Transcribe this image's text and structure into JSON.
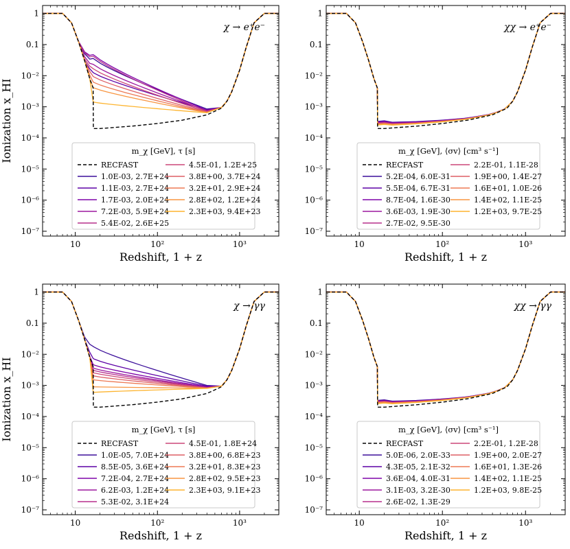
{
  "figure": {
    "ylabel": "Ionization x_HI",
    "xlabel": "Redshift, 1 + z"
  },
  "colors": {
    "recfast": "#000000",
    "palette": [
      "#3b0f9a",
      "#5c01a6",
      "#7e03a8",
      "#9c179e",
      "#b52f8c",
      "#cc4778",
      "#de5f65",
      "#ed7953",
      "#f89540",
      "#fdb42f"
    ]
  },
  "chart_data": [
    {
      "type": "line",
      "panel": "top-left",
      "title": "χ → e⁺e⁻",
      "xlabel": "Redshift, 1 + z",
      "ylabel": "Ionization x_HI",
      "xscale": "log",
      "yscale": "log",
      "xlim": [
        4,
        3000
      ],
      "ylim": [
        7e-08,
        1.8
      ],
      "xticks": [
        "10",
        "10²",
        "10³"
      ],
      "yticks": [
        "1",
        "0.1",
        "10⁻²",
        "10⁻³",
        "10⁻⁴",
        "10⁻⁵",
        "10⁻⁶",
        "10⁻⁷"
      ],
      "legend": {
        "placement": "lower-center",
        "title": "m_χ [GeV],  τ [s]",
        "recfast_label": "RECFAST",
        "entries": [
          "1.0E-03, 2.7E+24",
          "1.1E-03, 2.7E+24",
          "1.7E-03, 2.0E+24",
          "7.2E-03, 5.9E+24",
          "5.4E-02, 2.6E+25",
          "4.5E-01, 1.2E+25",
          "3.8E+00, 3.7E+24",
          "3.2E+01, 2.9E+24",
          "2.8E+02, 1.2E+24",
          "2.3E+03, 9.4E+23"
        ]
      },
      "baseline": {
        "name": "RECFAST",
        "x": [
          4,
          7,
          9,
          11,
          13,
          15,
          16.5,
          16.6,
          20,
          50,
          100,
          200,
          400,
          600,
          700,
          800,
          1000,
          1200,
          1500,
          2000,
          3000
        ],
        "y": [
          1,
          1,
          0.5,
          0.12,
          0.03,
          0.008,
          0.004,
          0.0002,
          0.0002,
          0.00024,
          0.00029,
          0.00037,
          0.00055,
          0.0009,
          0.0015,
          0.003,
          0.015,
          0.08,
          0.5,
          1,
          1
        ]
      },
      "series": [
        {
          "name": "1.0E-03, 2.7E+24",
          "y17": 0.034,
          "y400": 0.00085
        },
        {
          "name": "1.1E-03, 2.7E+24",
          "y17": 0.012,
          "y400": 0.0008
        },
        {
          "name": "1.7E-03, 2.0E+24",
          "y17": 0.045,
          "y400": 0.00078
        },
        {
          "name": "7.2E-03, 5.9E+24",
          "y17": 0.022,
          "y400": 0.00075
        },
        {
          "name": "5.4E-02, 2.6E+25",
          "y17": 0.04,
          "y400": 0.00072
        },
        {
          "name": "4.5E-01, 1.2E+25",
          "y17": 0.016,
          "y400": 0.0007
        },
        {
          "name": "3.8E+00, 3.7E+24",
          "y17": 0.009,
          "y400": 0.00068
        },
        {
          "name": "3.2E+01, 2.9E+24",
          "y17": 0.006,
          "y400": 0.00066
        },
        {
          "name": "2.8E+02, 1.2E+24",
          "y17": 0.004,
          "y400": 0.00065
        },
        {
          "name": "2.3E+03, 9.4E+23",
          "y17": 0.0014,
          "y400": 0.00064
        }
      ]
    },
    {
      "type": "line",
      "panel": "top-right",
      "title": "χχ → e⁺e⁻",
      "xlabel": "Redshift, 1 + z",
      "ylabel": "",
      "xscale": "log",
      "yscale": "log",
      "xlim": [
        4,
        3000
      ],
      "ylim": [
        7e-08,
        1.8
      ],
      "xticks": [
        "10",
        "10²",
        "10³"
      ],
      "yticks": [
        "1",
        "0.1",
        "10⁻²",
        "10⁻³",
        "10⁻⁴",
        "10⁻⁵",
        "10⁻⁶",
        "10⁻⁷"
      ],
      "legend": {
        "placement": "lower-center",
        "title": "m_χ [GeV],  ⟨σv⟩ [cm³ s⁻¹]",
        "recfast_label": "RECFAST",
        "entries": [
          "5.2E-04, 6.0E-31",
          "5.5E-04, 6.7E-31",
          "8.7E-04, 1.6E-30",
          "3.6E-03, 1.9E-30",
          "2.7E-02, 9.5E-30",
          "2.2E-01, 1.1E-28",
          "1.9E+00, 1.4E-27",
          "1.6E+01, 1.0E-26",
          "1.4E+02, 1.1E-25",
          "1.2E+03, 9.7E-25"
        ]
      },
      "baseline": {
        "name": "RECFAST",
        "x": [
          4,
          7,
          9,
          11,
          13,
          15,
          16.5,
          16.6,
          20,
          50,
          100,
          200,
          400,
          600,
          700,
          800,
          1000,
          1200,
          1500,
          2000,
          3000
        ],
        "y": [
          1,
          1,
          0.5,
          0.12,
          0.03,
          0.008,
          0.004,
          0.0002,
          0.0002,
          0.00024,
          0.00029,
          0.00037,
          0.00055,
          0.0009,
          0.0015,
          0.003,
          0.015,
          0.08,
          0.5,
          1,
          1
        ]
      },
      "series": [
        {
          "name": "5.2E-04, 6.0E-31",
          "y17": 0.00034
        },
        {
          "name": "5.5E-04, 6.7E-31",
          "y17": 0.00033
        },
        {
          "name": "8.7E-04, 1.6E-30",
          "y17": 0.00032
        },
        {
          "name": "3.6E-03, 1.9E-30",
          "y17": 0.00031
        },
        {
          "name": "2.7E-02, 9.5E-30",
          "y17": 0.0003
        },
        {
          "name": "2.2E-01, 1.1E-28",
          "y17": 0.00029
        },
        {
          "name": "1.9E+00, 1.4E-27",
          "y17": 0.00028
        },
        {
          "name": "1.6E+01, 1.0E-26",
          "y17": 0.00028
        },
        {
          "name": "1.4E+02, 1.1E-25",
          "y17": 0.00027
        },
        {
          "name": "1.2E+03, 9.7E-25",
          "y17": 0.00026
        }
      ]
    },
    {
      "type": "line",
      "panel": "bottom-left",
      "title": "χ → γγ",
      "xlabel": "Redshift, 1 + z",
      "ylabel": "Ionization x_HI",
      "xscale": "log",
      "yscale": "log",
      "xlim": [
        4,
        3000
      ],
      "ylim": [
        7e-08,
        1.8
      ],
      "xticks": [
        "10",
        "10²",
        "10³"
      ],
      "yticks": [
        "1",
        "0.1",
        "10⁻²",
        "10⁻³",
        "10⁻⁴",
        "10⁻⁵",
        "10⁻⁶",
        "10⁻⁷"
      ],
      "legend": {
        "placement": "lower-center",
        "title": "m_χ [GeV],  τ [s]",
        "recfast_label": "RECFAST",
        "entries": [
          "1.0E-05, 7.0E+24",
          "8.5E-05, 3.6E+24",
          "7.2E-04, 2.7E+24",
          "6.2E-03, 1.2E+24",
          "5.3E-02, 3.1E+24",
          "4.5E-01, 1.8E+24",
          "3.8E+00, 6.8E+23",
          "3.2E+01, 8.3E+23",
          "2.8E+02, 9.5E+23",
          "2.3E+03, 9.1E+23"
        ]
      },
      "baseline": {
        "name": "RECFAST",
        "x": [
          4,
          7,
          9,
          11,
          13,
          15,
          16.5,
          16.6,
          20,
          50,
          100,
          200,
          400,
          600,
          700,
          800,
          1000,
          1200,
          1500,
          2000,
          3000
        ],
        "y": [
          1,
          1,
          0.5,
          0.12,
          0.03,
          0.008,
          0.004,
          0.0002,
          0.0002,
          0.00024,
          0.00029,
          0.00037,
          0.00055,
          0.0009,
          0.0015,
          0.003,
          0.015,
          0.08,
          0.5,
          1,
          1
        ]
      },
      "series": [
        {
          "name": "1.0E-05, 7.0E+24",
          "y17": 0.017,
          "y400": 0.001
        },
        {
          "name": "8.5E-05, 3.6E+24",
          "y17": 0.007,
          "y400": 0.00095
        },
        {
          "name": "7.2E-04, 2.7E+24",
          "y17": 0.0045,
          "y400": 0.0009
        },
        {
          "name": "6.2E-03, 1.2E+24",
          "y17": 0.0035,
          "y400": 0.00087
        },
        {
          "name": "5.3E-02, 3.1E+24",
          "y17": 0.003,
          "y400": 0.00085
        },
        {
          "name": "4.5E-01, 1.8E+24",
          "y17": 0.0025,
          "y400": 0.00083
        },
        {
          "name": "3.8E+00, 6.8E+23",
          "y17": 0.002,
          "y400": 0.00082
        },
        {
          "name": "3.2E+01, 8.3E+23",
          "y17": 0.0015,
          "y400": 0.00082
        },
        {
          "name": "2.8E+02, 9.5E+23",
          "y17": 0.0009,
          "y400": 0.00081
        },
        {
          "name": "2.3E+03, 9.1E+23",
          "y17": 0.0006,
          "y400": 0.0008
        }
      ]
    },
    {
      "type": "line",
      "panel": "bottom-right",
      "title": "χχ → γγ",
      "xlabel": "Redshift, 1 + z",
      "ylabel": "",
      "xscale": "log",
      "yscale": "log",
      "xlim": [
        4,
        3000
      ],
      "ylim": [
        7e-08,
        1.8
      ],
      "xticks": [
        "10",
        "10²",
        "10³"
      ],
      "yticks": [
        "1",
        "0.1",
        "10⁻²",
        "10⁻³",
        "10⁻⁴",
        "10⁻⁵",
        "10⁻⁶",
        "10⁻⁷"
      ],
      "legend": {
        "placement": "lower-center",
        "title": "m_χ [GeV],  ⟨σv⟩ [cm³ s⁻¹]",
        "recfast_label": "RECFAST",
        "entries": [
          "5.0E-06, 2.0E-33",
          "4.3E-05, 2.1E-32",
          "3.6E-04, 4.0E-31",
          "3.1E-03, 3.2E-30",
          "2.6E-02, 1.3E-29",
          "2.2E-01, 1.2E-28",
          "1.9E+00, 2.0E-27",
          "1.6E+01, 1.3E-26",
          "1.4E+02, 1.1E-25",
          "1.2E+03, 9.8E-25"
        ]
      },
      "baseline": {
        "name": "RECFAST",
        "x": [
          4,
          7,
          9,
          11,
          13,
          15,
          16.5,
          16.6,
          20,
          50,
          100,
          200,
          400,
          600,
          700,
          800,
          1000,
          1200,
          1500,
          2000,
          3000
        ],
        "y": [
          1,
          1,
          0.5,
          0.12,
          0.03,
          0.008,
          0.004,
          0.0002,
          0.0002,
          0.00024,
          0.00029,
          0.00037,
          0.00055,
          0.0009,
          0.0015,
          0.003,
          0.015,
          0.08,
          0.5,
          1,
          1
        ]
      },
      "series": [
        {
          "name": "5.0E-06, 2.0E-33",
          "y17": 0.00033
        },
        {
          "name": "4.3E-05, 2.1E-32",
          "y17": 0.00032
        },
        {
          "name": "3.6E-04, 4.0E-31",
          "y17": 0.00031
        },
        {
          "name": "3.1E-03, 3.2E-30",
          "y17": 0.0003
        },
        {
          "name": "2.6E-02, 1.3E-29",
          "y17": 0.0003
        },
        {
          "name": "2.2E-01, 1.2E-28",
          "y17": 0.00029
        },
        {
          "name": "1.9E+00, 2.0E-27",
          "y17": 0.00028
        },
        {
          "name": "1.6E+01, 1.3E-26",
          "y17": 0.00028
        },
        {
          "name": "1.4E+02, 1.1E-25",
          "y17": 0.00027
        },
        {
          "name": "1.2E+03, 9.8E-25",
          "y17": 0.00026
        }
      ]
    }
  ]
}
